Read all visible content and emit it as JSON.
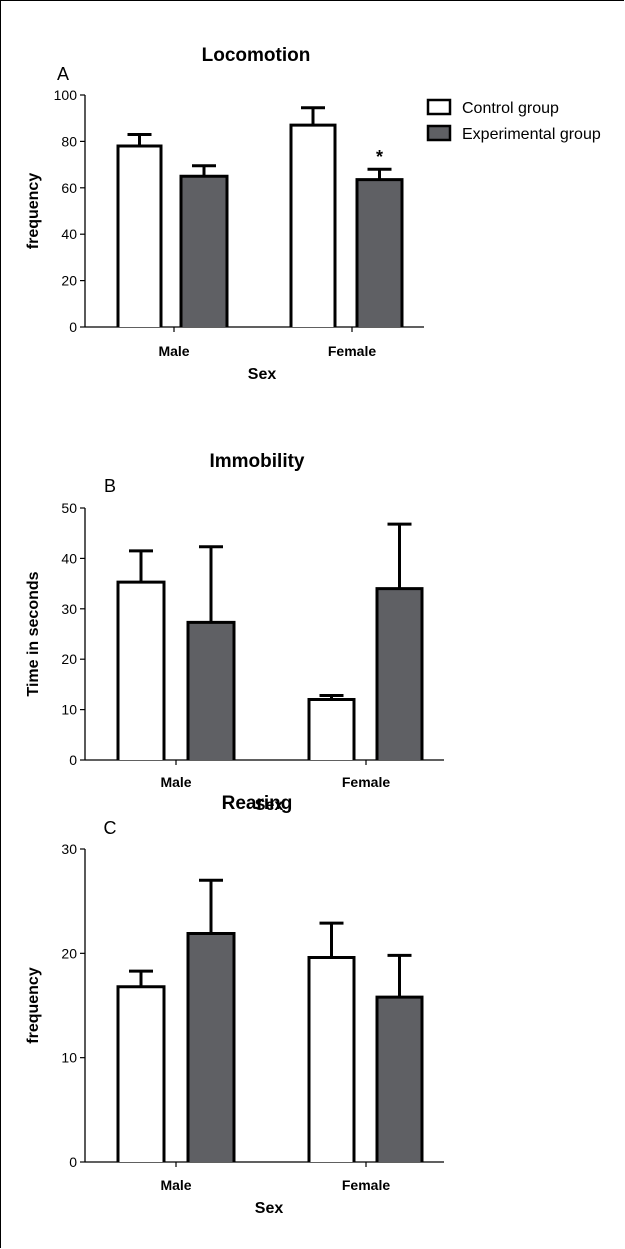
{
  "colors": {
    "control_fill": "#ffffff",
    "experimental_fill": "#5f6064",
    "stroke": "#000000"
  },
  "legend": {
    "items": [
      {
        "label": "Control group",
        "color": "#ffffff"
      },
      {
        "label": "Experimental group",
        "color": "#5f6064"
      }
    ],
    "placement": "top-right of panel A"
  },
  "chart_data": [
    {
      "type": "bar",
      "panel_label": "A",
      "title": "Locomotion",
      "xlabel": "Sex",
      "ylabel": "frequency",
      "categories": [
        "Male",
        "Female"
      ],
      "ylim": [
        0,
        100
      ],
      "yticks": [
        "0",
        "20",
        "40",
        "60",
        "80",
        "100"
      ],
      "series": [
        {
          "name": "Control group",
          "values": [
            78,
            87
          ],
          "errors": [
            5,
            7.5
          ]
        },
        {
          "name": "Experimental group",
          "values": [
            65,
            63.5
          ],
          "errors": [
            4.5,
            4.5
          ]
        }
      ],
      "annotations": [
        {
          "text": "*",
          "category": "Female",
          "series": "Experimental group"
        }
      ],
      "grid": false
    },
    {
      "type": "bar",
      "panel_label": "B",
      "title": "Immobility",
      "xlabel": "Sex",
      "ylabel": "Time in seconds",
      "categories": [
        "Male",
        "Female"
      ],
      "ylim": [
        0,
        50
      ],
      "yticks": [
        "0",
        "10",
        "20",
        "30",
        "40",
        "50"
      ],
      "series": [
        {
          "name": "Control group",
          "values": [
            35.3,
            12
          ],
          "errors": [
            6.2,
            0.8
          ]
        },
        {
          "name": "Experimental group",
          "values": [
            27.3,
            34
          ],
          "errors": [
            15,
            12.8
          ]
        }
      ],
      "annotations": [],
      "grid": false
    },
    {
      "type": "bar",
      "panel_label": "C",
      "title": "Rearing",
      "xlabel": "Sex",
      "ylabel": "frequency",
      "categories": [
        "Male",
        "Female"
      ],
      "ylim": [
        0,
        30
      ],
      "yticks": [
        "0",
        "10",
        "20",
        "30"
      ],
      "series": [
        {
          "name": "Control group",
          "values": [
            16.8,
            19.6
          ],
          "errors": [
            1.5,
            3.3
          ]
        },
        {
          "name": "Experimental group",
          "values": [
            21.9,
            15.8
          ],
          "errors": [
            5.1,
            4
          ]
        }
      ],
      "annotations": [],
      "grid": false
    }
  ]
}
